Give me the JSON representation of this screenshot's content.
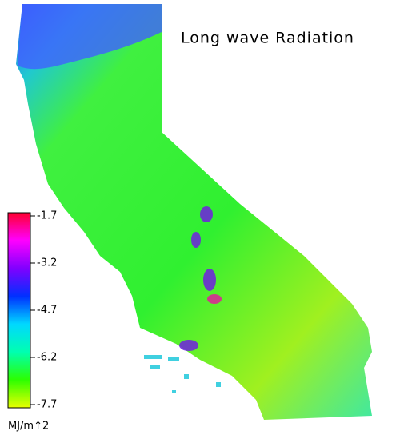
{
  "title": "Long wave Radiation",
  "colorbar": {
    "label": "MJ/m↑2",
    "lim": [
      -7.7,
      -1.7
    ],
    "ticks": [
      -1.7,
      -3.2,
      -4.7,
      -6.2,
      -7.7
    ],
    "colormap": [
      "#e8ff00",
      "#2cff00",
      "#00ffb0",
      "#00d8ff",
      "#0030ff",
      "#8000ff",
      "#ff00ff",
      "#ff0030"
    ]
  }
}
